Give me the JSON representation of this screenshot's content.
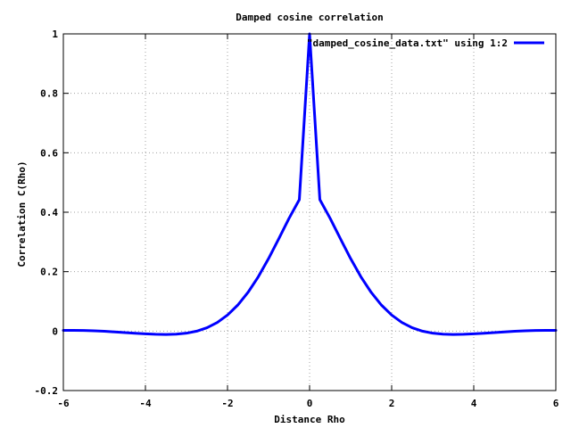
{
  "chart_data": {
    "type": "line",
    "title": "Damped cosine correlation",
    "xlabel": "Distance Rho",
    "ylabel": "Correlation C(Rho)",
    "xlim": [
      -6,
      6
    ],
    "ylim": [
      -0.2,
      1
    ],
    "x_ticks": [
      -6,
      -4,
      -2,
      0,
      2,
      4,
      6
    ],
    "y_ticks": [
      -0.2,
      0,
      0.2,
      0.4,
      0.6,
      0.8,
      1
    ],
    "y_tick_labels": [
      "-0.2",
      "0",
      "0.2",
      "0.4",
      "0.6",
      "0.8",
      "1"
    ],
    "x_tick_labels": [
      "-6",
      "-4",
      "-2",
      "0",
      "2",
      "4",
      "6"
    ],
    "grid": true,
    "legend_position": "top-right",
    "series": [
      {
        "name": "\"damped_cosine_data.txt\" using 1:2",
        "color": "#0000ff",
        "x": [
          -6.0,
          -5.75,
          -5.5,
          -5.25,
          -5.0,
          -4.75,
          -4.5,
          -4.25,
          -4.0,
          -3.75,
          -3.5,
          -3.25,
          -3.0,
          -2.75,
          -2.5,
          -2.25,
          -2.0,
          -1.75,
          -1.5,
          -1.25,
          -1.0,
          -0.75,
          -0.5,
          -0.25,
          0.0,
          0.25,
          0.5,
          0.75,
          1.0,
          1.25,
          1.5,
          1.75,
          2.0,
          2.25,
          2.5,
          2.75,
          3.0,
          3.25,
          3.5,
          3.75,
          4.0,
          4.25,
          4.5,
          4.75,
          5.0,
          5.25,
          5.5,
          5.75,
          6.0
        ],
        "y": [
          0.0025,
          0.0026,
          0.0021,
          0.001,
          -0.0006,
          -0.0027,
          -0.005,
          -0.0073,
          -0.0093,
          -0.0108,
          -0.0113,
          -0.0104,
          -0.007,
          -0.0002,
          0.0114,
          0.029,
          0.054,
          0.0876,
          0.1304,
          0.1828,
          0.2439,
          0.3111,
          0.3796,
          0.4423,
          1.0,
          0.4423,
          0.3796,
          0.3111,
          0.2439,
          0.1828,
          0.1304,
          0.0876,
          0.054,
          0.029,
          0.0114,
          -0.0002,
          -0.007,
          -0.0104,
          -0.0113,
          -0.0108,
          -0.0093,
          -0.0073,
          -0.005,
          -0.0027,
          -0.0006,
          0.001,
          0.0021,
          0.0026,
          0.0025
        ]
      }
    ]
  }
}
